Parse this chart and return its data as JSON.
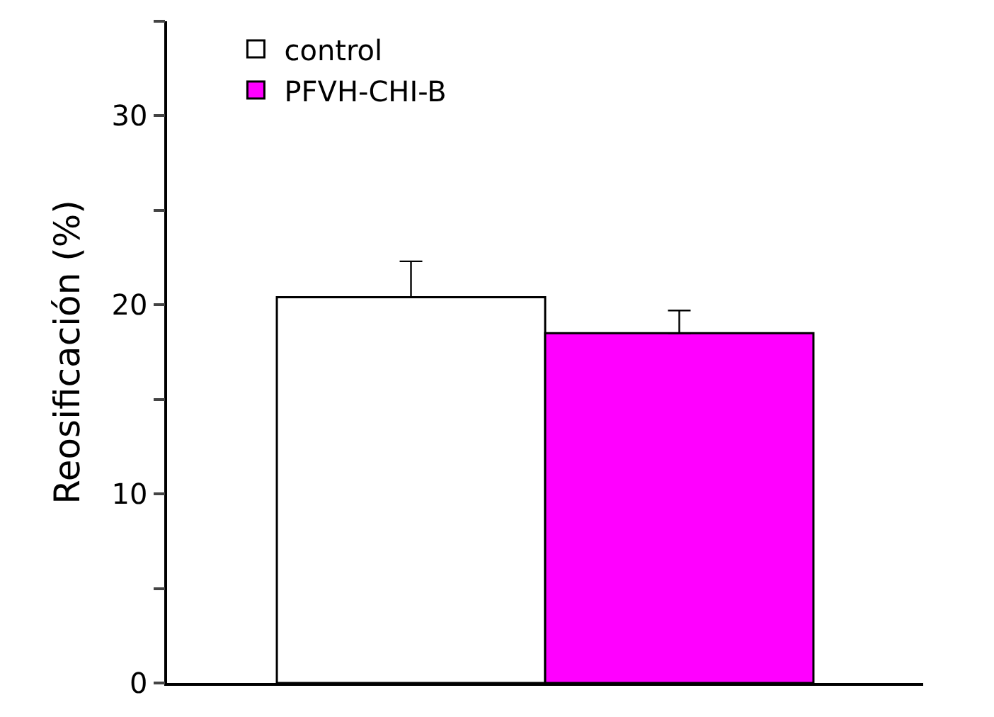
{
  "chart_data": {
    "type": "bar",
    "ylabel": "Reosificación (%)",
    "categories": [
      null
    ],
    "series": [
      {
        "name": "control",
        "color": "#ffffff",
        "values": [
          20.4
        ],
        "errors": [
          [
            20.4,
            22.3
          ]
        ]
      },
      {
        "name": "PFVH-CHI-B",
        "color": "#ff00ff",
        "values": [
          18.5
        ],
        "errors": [
          [
            18.5,
            19.7
          ]
        ]
      }
    ],
    "ylim": [
      0,
      35
    ],
    "yticks": [
      0,
      {
        "value": 5,
        "label": null
      },
      10,
      {
        "value": 15,
        "label": null
      },
      20,
      {
        "value": 25,
        "label": null
      },
      30,
      {
        "value": 35,
        "label": null
      }
    ],
    "legend": "top left",
    "tick_labels": "y"
  }
}
